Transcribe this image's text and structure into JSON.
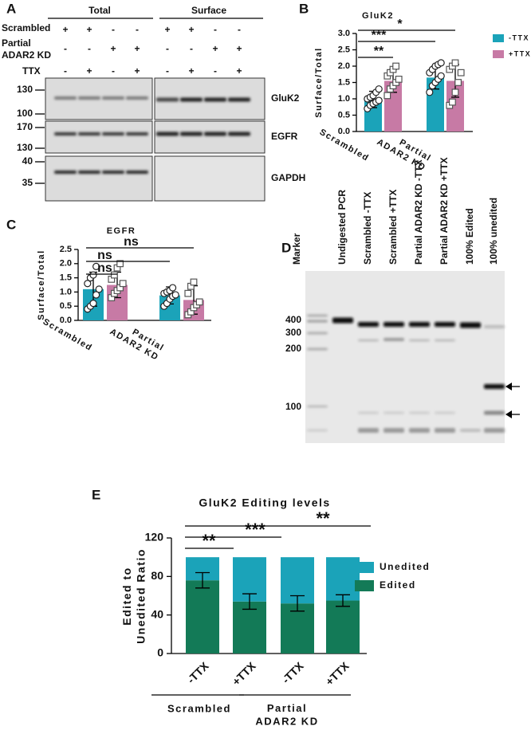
{
  "panels": [
    "A",
    "B",
    "C",
    "D",
    "E"
  ],
  "blot": {
    "headers": [
      "Total",
      "Surface"
    ],
    "conditions": [
      {
        "label": "Scrambled",
        "signs": [
          "+",
          "+",
          "-",
          "-"
        ]
      },
      {
        "label": "Partial\nADAR2 KD",
        "signs": [
          "-",
          "-",
          "+",
          "+"
        ]
      },
      {
        "label": "TTX",
        "signs": [
          "-",
          "+",
          "-",
          "+"
        ]
      }
    ],
    "rows": [
      {
        "label": "GluK2",
        "markers": [
          130,
          100
        ]
      },
      {
        "label": "EGFR",
        "markers": [
          170,
          130
        ]
      },
      {
        "label": "GAPDH",
        "markers": [
          40,
          35
        ]
      }
    ]
  },
  "gel": {
    "lanes": [
      "Marker",
      "Undigested PCR",
      "Scrambled -TTX",
      "Scrambled +TTX",
      "Partial ADAR2 KD -TTX",
      "Partial ADAR2 KD +TTX",
      "100% Edited",
      "100% unedited"
    ],
    "sizes": [
      400,
      300,
      200,
      100
    ]
  },
  "chart_data": [
    {
      "type": "bar",
      "title": "GluK2",
      "ylabel": "Surface/Total",
      "categories": [
        "Scrambled",
        "Partial\nADAR2 KD"
      ],
      "series": [
        {
          "name": "-TTX",
          "color": "#1ba3b9",
          "values": [
            0.98,
            1.65
          ],
          "errors": [
            0.25,
            0.35
          ],
          "points": [
            [
              0.7,
              0.8,
              0.85,
              0.9,
              0.95,
              1.0,
              1.05,
              1.1,
              1.2,
              1.3
            ],
            [
              1.2,
              1.4,
              1.5,
              1.6,
              1.7,
              1.8,
              1.9,
              2.0,
              2.05,
              2.1
            ]
          ]
        },
        {
          "name": "+TTX",
          "color": "#c77aa5",
          "values": [
            1.55,
            1.55
          ],
          "errors": [
            0.35,
            0.5
          ],
          "points": [
            [
              1.1,
              1.3,
              1.4,
              1.5,
              1.6,
              1.7,
              1.8,
              1.9,
              2.0
            ],
            [
              0.8,
              0.9,
              1.2,
              1.5,
              1.8,
              1.9,
              2.0,
              2.1
            ]
          ]
        }
      ],
      "ylim": [
        0,
        3
      ],
      "yticks": [
        {
          "value": 0,
          "label": "0.0"
        },
        0.5,
        {
          "value": 1,
          "label": "1.0"
        },
        1.5,
        {
          "value": 2,
          "label": "2.0"
        },
        2.5,
        {
          "value": 3,
          "label": "3.0"
        }
      ],
      "grid": false,
      "legend": "right",
      "annotations": [
        "**",
        "***",
        "*"
      ]
    },
    {
      "type": "bar",
      "title": "EGFR",
      "ylabel": "Surface/Total",
      "categories": [
        "Scrambled",
        "Partial\nADAR2 KD"
      ],
      "series": [
        {
          "color": "#1ba3b9",
          "values": [
            1.1,
            0.88
          ],
          "errors": [
            0.6,
            0.3
          ],
          "points": [
            [
              0.4,
              0.5,
              0.6,
              0.9,
              1.1,
              1.3,
              1.5,
              1.6,
              1.9
            ],
            [
              0.5,
              0.6,
              0.75,
              0.85,
              0.9,
              0.95,
              1.0,
              1.05,
              1.15
            ]
          ]
        },
        {
          "color": "#c77aa5",
          "values": [
            1.25,
            0.72
          ],
          "errors": [
            0.45,
            0.5
          ],
          "points": [
            [
              0.8,
              0.95,
              1.05,
              1.15,
              1.3,
              1.45,
              1.6,
              1.85,
              2.0
            ],
            [
              0.2,
              0.3,
              0.45,
              0.55,
              0.65,
              0.95,
              1.2,
              1.35
            ]
          ]
        }
      ],
      "ylim": [
        0,
        2.5
      ],
      "yticks": [
        {
          "value": 0,
          "label": "0.0"
        },
        0.5,
        {
          "value": 1,
          "label": "1.0"
        },
        1.5,
        {
          "value": 2,
          "label": "2.0"
        },
        2.5
      ],
      "grid": false,
      "annotations": [
        "ns",
        "ns",
        "ns"
      ]
    },
    {
      "type": "stacked_bar",
      "title": "GluK2 Editing levels",
      "ylabel": "Edited to\nUnedited Ratio",
      "categories": [
        "-TTX",
        "+TTX",
        "-TTX",
        "+TTX"
      ],
      "groups": [
        "Scrambled",
        "Partial\nADAR2 KD"
      ],
      "series": [
        {
          "name": "Edited",
          "color": "#137a57",
          "values": [
            76,
            54,
            52,
            55
          ],
          "errors": [
            8,
            8,
            8,
            6
          ]
        },
        {
          "name": "Unedited",
          "color": "#1ba3b9",
          "values": [
            24,
            46,
            48,
            45
          ]
        }
      ],
      "ylim": [
        0,
        120
      ],
      "yticks": [
        0,
        40,
        80,
        120
      ],
      "grid": false,
      "legend": "right",
      "annotations": [
        "**",
        "***",
        "**"
      ]
    }
  ]
}
